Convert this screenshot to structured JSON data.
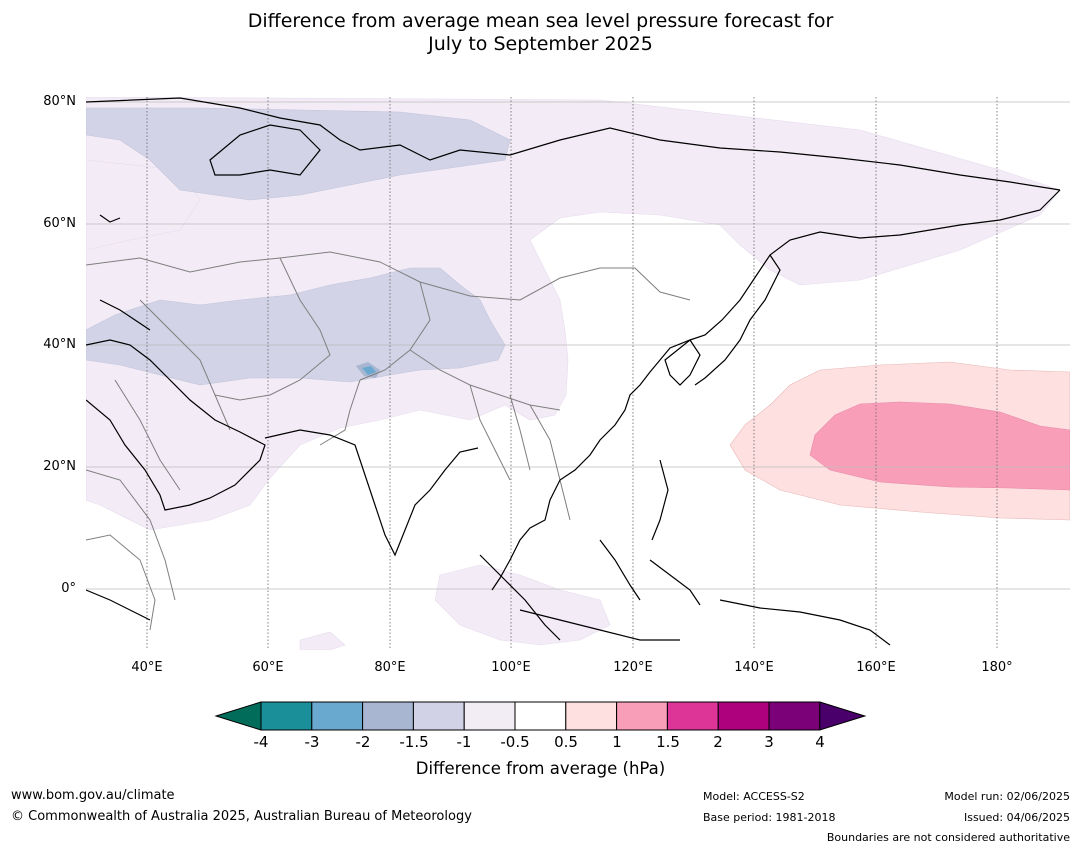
{
  "title_line1": "Difference from average mean sea level pressure forecast for",
  "title_line2": "July to September 2025",
  "map": {
    "lat_labels": [
      "80°N",
      "60°N",
      "40°N",
      "20°N",
      "0°"
    ],
    "lon_labels": [
      "40°E",
      "60°E",
      "80°E",
      "100°E",
      "120°E",
      "140°E",
      "160°E",
      "180°"
    ]
  },
  "colorbar": {
    "ticks": [
      "-4",
      "-3",
      "-2",
      "-1.5",
      "-1",
      "-0.5",
      "0.5",
      "1",
      "1.5",
      "2",
      "3",
      "4"
    ],
    "colors": [
      "#1a8f99",
      "#6aa9cf",
      "#a9b6d2",
      "#d1d2e5",
      "#f2ecf5",
      "#ffffff",
      "#fde0df",
      "#f89eb9",
      "#dd3497",
      "#ae017e",
      "#7a0177"
    ],
    "under_color": "#016c59",
    "over_color": "#49006a",
    "label": "Difference from average (hPa)"
  },
  "footer": {
    "website": "www.bom.gov.au/climate",
    "copyright": "© Commonwealth of Australia 2025, Australian Bureau of Meteorology",
    "model": "Model: ACCESS-S2",
    "base_period": "Base period: 1981-2018",
    "model_run": "Model run: 02/06/2025",
    "issued": "Issued: 04/06/2025",
    "disclaimer": "Boundaries are not considered authoritative"
  }
}
